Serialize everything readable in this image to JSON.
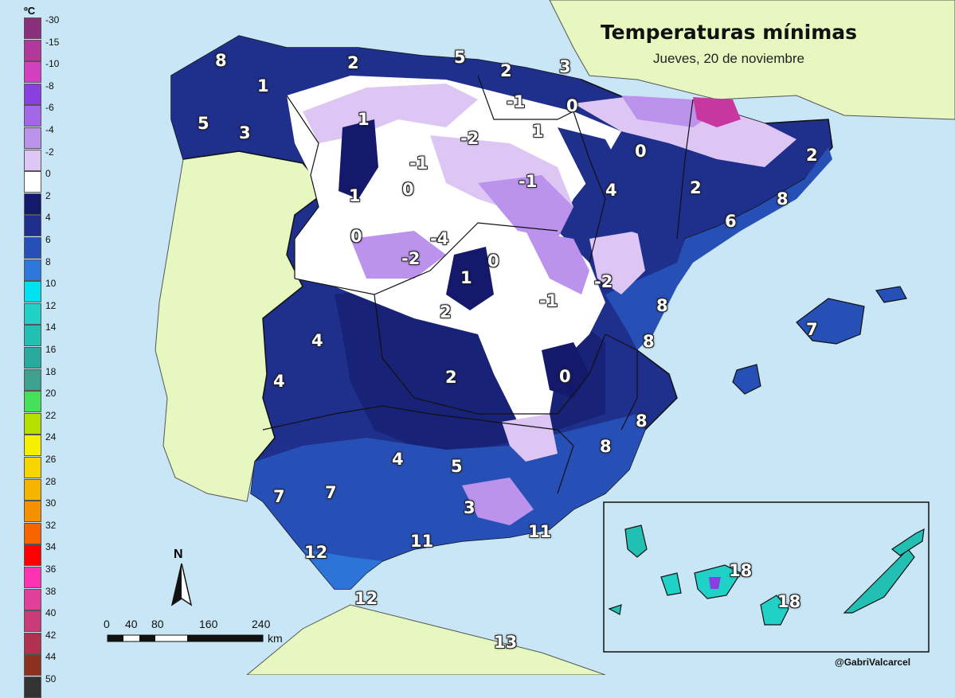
{
  "title": "Temperaturas mínimas",
  "subtitle": "Jueves, 20 de noviembre",
  "credit": "@GabriValcarcel",
  "legend": {
    "unit": "ºC",
    "labels": [
      "-30",
      "-15",
      "-10",
      "-8",
      "-6",
      "-4",
      "-2",
      "0",
      "2",
      "4",
      "6",
      "8",
      "10",
      "12",
      "14",
      "16",
      "18",
      "20",
      "22",
      "24",
      "26",
      "28",
      "30",
      "32",
      "34",
      "36",
      "38",
      "40",
      "42",
      "44",
      "50"
    ],
    "colors": [
      "#8a2f7a",
      "#b4379e",
      "#d43fbf",
      "#8a3fe0",
      "#a468e6",
      "#bb92ec",
      "#ddc6f4",
      "#ffffff",
      "#14196b",
      "#1f2f8f",
      "#2550b8",
      "#2c78dd",
      "#00e1f0",
      "#1fd1c7",
      "#22c0b3",
      "#2aa99e",
      "#3ea08e",
      "#44e05a",
      "#b4e000",
      "#f5f000",
      "#f5d400",
      "#f5b400",
      "#f59000",
      "#f56400",
      "#ff0000",
      "#ff33b4",
      "#e0409a",
      "#c83a78",
      "#b03050",
      "#8c3020",
      "#333333"
    ]
  },
  "north_label": "N",
  "scale": {
    "ticks": [
      "0",
      "40",
      "80",
      "160",
      "240"
    ],
    "unit": "km"
  },
  "values": [
    {
      "name": "galicia-nw",
      "text": "8"
    },
    {
      "name": "galicia-int",
      "text": "1"
    },
    {
      "name": "galicia-w",
      "text": "5"
    },
    {
      "name": "galicia-s",
      "text": "3"
    },
    {
      "name": "asturias",
      "text": "2"
    },
    {
      "name": "cantabria",
      "text": "5"
    },
    {
      "name": "pais-vasco",
      "text": "2"
    },
    {
      "name": "pais-vasco-e",
      "text": "3"
    },
    {
      "name": "burgos",
      "text": "-1"
    },
    {
      "name": "navarra",
      "text": "0"
    },
    {
      "name": "leon",
      "text": "1"
    },
    {
      "name": "palencia",
      "text": "-2"
    },
    {
      "name": "rioja",
      "text": "1"
    },
    {
      "name": "valladolid",
      "text": "-1"
    },
    {
      "name": "zamora",
      "text": "0"
    },
    {
      "name": "soria",
      "text": "-1"
    },
    {
      "name": "huesca",
      "text": "0"
    },
    {
      "name": "girona",
      "text": "2"
    },
    {
      "name": "zaragoza",
      "text": "4"
    },
    {
      "name": "lleida",
      "text": "2"
    },
    {
      "name": "barcelona",
      "text": "8"
    },
    {
      "name": "tarragona",
      "text": "6"
    },
    {
      "name": "salamanca-w",
      "text": "1"
    },
    {
      "name": "salamanca",
      "text": "0"
    },
    {
      "name": "avila",
      "text": "-4"
    },
    {
      "name": "gredos",
      "text": "-2"
    },
    {
      "name": "madrid",
      "text": "0"
    },
    {
      "name": "teruel",
      "text": "-2"
    },
    {
      "name": "toledo",
      "text": "1"
    },
    {
      "name": "cuenca",
      "text": "-1"
    },
    {
      "name": "castellon",
      "text": "8"
    },
    {
      "name": "mallorca",
      "text": "7"
    },
    {
      "name": "caceres",
      "text": "2"
    },
    {
      "name": "valencia",
      "text": "8"
    },
    {
      "name": "badajoz-n",
      "text": "4"
    },
    {
      "name": "badajoz",
      "text": "4"
    },
    {
      "name": "ciudad-real",
      "text": "2"
    },
    {
      "name": "albacete",
      "text": "0"
    },
    {
      "name": "alicante",
      "text": "8"
    },
    {
      "name": "murcia",
      "text": "8"
    },
    {
      "name": "cordoba",
      "text": "4"
    },
    {
      "name": "jaen",
      "text": "5"
    },
    {
      "name": "huelva",
      "text": "7"
    },
    {
      "name": "sevilla",
      "text": "7"
    },
    {
      "name": "granada",
      "text": "3"
    },
    {
      "name": "almeria",
      "text": "11"
    },
    {
      "name": "malaga",
      "text": "11"
    },
    {
      "name": "cadiz",
      "text": "12"
    },
    {
      "name": "tarifa",
      "text": "12"
    },
    {
      "name": "melilla",
      "text": "13"
    },
    {
      "name": "tenerife",
      "text": "18"
    },
    {
      "name": "gran-canaria",
      "text": "18"
    }
  ]
}
